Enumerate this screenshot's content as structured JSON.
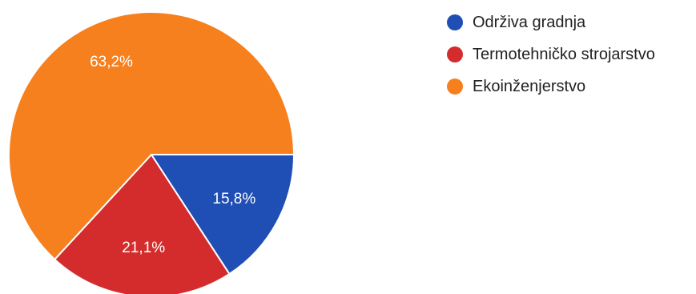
{
  "chart_data": {
    "type": "pie",
    "categories": [
      "Održiva gradnja",
      "Termotehničko strojarstvo",
      "Ekoinženjerstvo"
    ],
    "values": [
      15.8,
      21.1,
      63.2
    ],
    "labels": [
      "15,8%",
      "21,1%",
      "63,2%"
    ],
    "colors": [
      "#1f4fb4",
      "#d42c2c",
      "#f7801e"
    ],
    "legend_position": "top-right",
    "title": ""
  }
}
